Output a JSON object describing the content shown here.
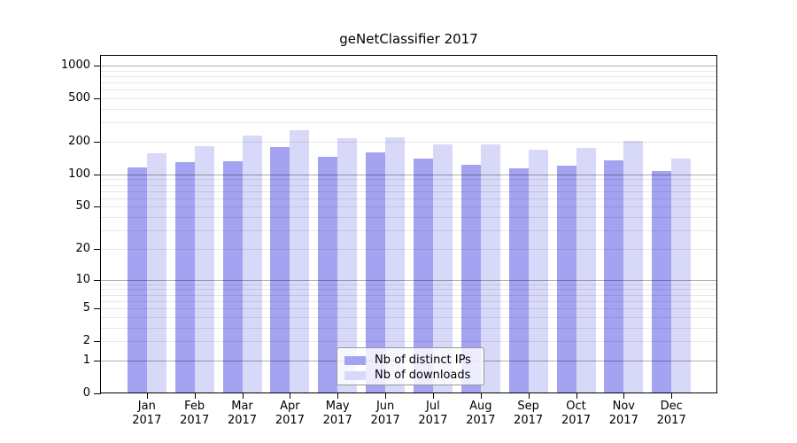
{
  "chart_data": {
    "type": "bar",
    "title": "geNetClassifier 2017",
    "categories": [
      "Jan",
      "Feb",
      "Mar",
      "Apr",
      "May",
      "Jun",
      "Jul",
      "Aug",
      "Sep",
      "Oct",
      "Nov",
      "Dec"
    ],
    "category_year": "2017",
    "series": [
      {
        "name": "Nb of distinct IPs",
        "color": "#a3a3f2",
        "values": [
          117,
          130,
          133,
          180,
          146,
          160,
          139,
          123,
          114,
          121,
          135,
          107
        ]
      },
      {
        "name": "Nb of downloads",
        "color": "#d8d8f8",
        "values": [
          156,
          183,
          230,
          253,
          215,
          220,
          189,
          190,
          168,
          176,
          202,
          141
        ]
      }
    ],
    "y_axis": {
      "scale": "log10(value+1)",
      "tick_labels": [
        0,
        1,
        2,
        5,
        10,
        20,
        50,
        100,
        200,
        500,
        1000
      ],
      "top_value": 1250,
      "major_gridlines": [
        1,
        10,
        100,
        1000
      ],
      "minor_gridlines": "2-9 within each decade"
    },
    "x_axis": {
      "label_line2": "2017"
    },
    "legend": {
      "position": "bottom-center"
    },
    "grid": true,
    "colors": {
      "background": "#ffffff",
      "bar_distinct_ips": "#a3a3f2",
      "bar_downloads": "#d8d8f8",
      "grid_major": "#adadad",
      "grid_minor": "#e8e8e8",
      "axis": "#000000",
      "text": "#000000"
    }
  }
}
